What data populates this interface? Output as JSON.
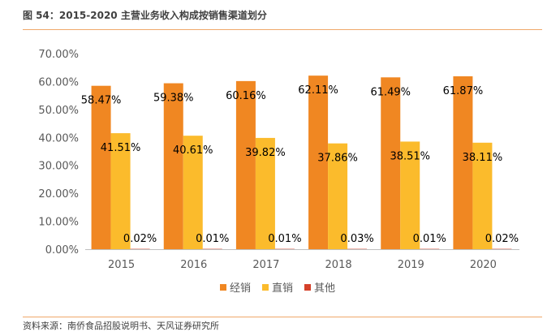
{
  "figure_title": "图 54：2015-2020 主营业务收入构成按销售渠道划分",
  "source": "资料来源：南侨食品招股说明书、天风证券研究所",
  "chart_data": {
    "type": "bar",
    "categories": [
      "2015",
      "2016",
      "2017",
      "2018",
      "2019",
      "2020"
    ],
    "series": [
      {
        "name": "经销",
        "color": "#f08722",
        "values": [
          58.47,
          59.38,
          60.16,
          62.11,
          61.49,
          61.87
        ],
        "labels": [
          "58.47%",
          "59.38%",
          "60.16%",
          "62.11%",
          "61.49%",
          "61.87%"
        ]
      },
      {
        "name": "直销",
        "color": "#fbbb2c",
        "values": [
          41.51,
          40.61,
          39.82,
          37.86,
          38.51,
          38.11
        ],
        "labels": [
          "41.51%",
          "40.61%",
          "39.82%",
          "37.86%",
          "38.51%",
          "38.11%"
        ]
      },
      {
        "name": "其他",
        "color": "#d5412a",
        "values": [
          0.02,
          0.01,
          0.01,
          0.03,
          0.01,
          0.02
        ],
        "labels": [
          "0.02%",
          "0.01%",
          "0.01%",
          "0.03%",
          "0.01%",
          "0.02%"
        ]
      }
    ],
    "ylim": [
      0,
      70
    ],
    "yticks": [
      "0.00%",
      "10.00%",
      "20.00%",
      "30.00%",
      "40.00%",
      "50.00%",
      "60.00%",
      "70.00%"
    ],
    "legend_position": "bottom",
    "grid": false
  }
}
